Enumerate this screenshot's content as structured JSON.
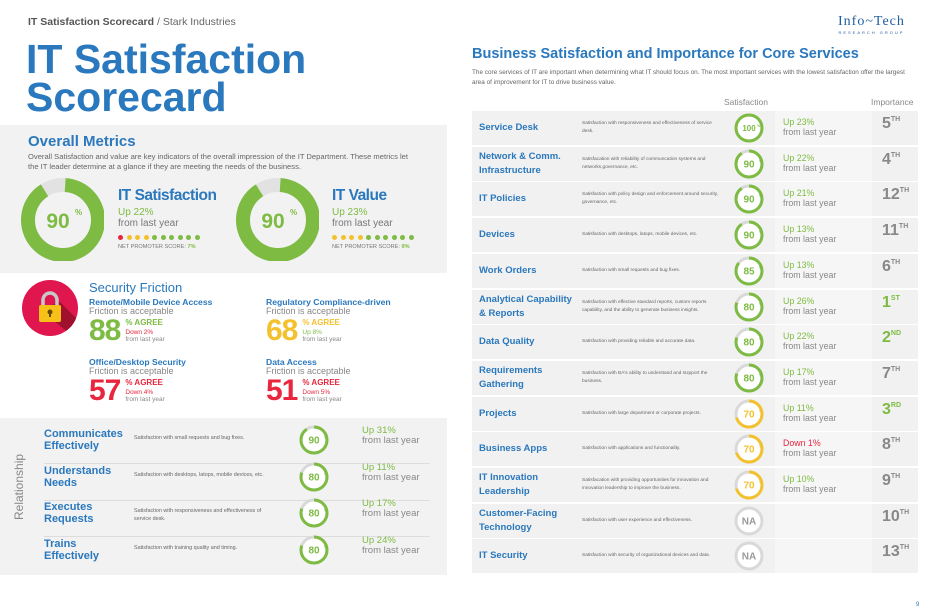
{
  "breadcrumb": {
    "doc": "IT Satisfaction Scorecard",
    "sep": " / ",
    "org": "Stark Industries"
  },
  "title": "IT Satisfaction Scorecard",
  "logo": {
    "line1": "Info~Tech",
    "line2": "RESEARCH GROUP"
  },
  "colors": {
    "blue": "#2a78bd",
    "green": "#7dbb42",
    "yellow": "#f4c12e",
    "red": "#e8263d",
    "gray": "#d9d9d9"
  },
  "overall": {
    "heading": "Overall Metrics",
    "description": "Overall Satisfaction and value are key indicators of the overall impression of the IT Department. These metrics let the IT leader determine at a glance if they are meeting the needs of the business.",
    "metrics": [
      {
        "title": "IT Satisfaction",
        "value": 90,
        "value_label": "90",
        "change": "Up 22%",
        "from": "from last year",
        "nps_label": "NET PROMOTER SCORE: ",
        "nps": "7%",
        "dots": [
          "red",
          "yellow",
          "yellow",
          "yellow",
          "green",
          "green",
          "green",
          "green",
          "green",
          "green"
        ]
      },
      {
        "title": "IT Value",
        "value": 90,
        "value_label": "90",
        "change": "Up 23%",
        "from": "from last year",
        "nps_label": "NET PROMOTER SCORE: ",
        "nps": "9%",
        "dots": [
          "yellow",
          "yellow",
          "yellow",
          "yellow",
          "green",
          "green",
          "green",
          "green",
          "green",
          "green"
        ]
      }
    ]
  },
  "security": {
    "heading": "Security Friction",
    "icon": "padlock-icon",
    "items": [
      {
        "name": "Remote/Mobile Device Access",
        "status": "Friction is acceptable",
        "value": "88",
        "agree": "% AGREE",
        "change": "Down 2%",
        "from": "from last year",
        "color": "green",
        "change_color": "red"
      },
      {
        "name": "Regulatory Compliance-driven",
        "status": "Friction is acceptable",
        "value": "68",
        "agree": "% AGREE",
        "change": "Up 8%",
        "from": "from last year",
        "color": "yellow",
        "change_color": "green"
      },
      {
        "name": "Office/Desktop Security",
        "status": "Friction is acceptable",
        "value": "57",
        "agree": "% AGREE",
        "change": "Down 4%",
        "from": "from last year",
        "color": "red",
        "change_color": "red"
      },
      {
        "name": "Data Access",
        "status": "Friction is acceptable",
        "value": "51",
        "agree": "% AGREE",
        "change": "Down 5%",
        "from": "from last year",
        "color": "red",
        "change_color": "red"
      }
    ]
  },
  "relationship": {
    "label": "Relationship",
    "rows": [
      {
        "name": "Communicates Effectively",
        "desc": "Satisfaction with small requests and bug fixes.",
        "value": 90,
        "change": "Up 31%",
        "from": "from last year"
      },
      {
        "name": "Understands Needs",
        "desc": "Satisfaction with desktops, latops, mobile devices, etc.",
        "value": 80,
        "change": "Up 11%",
        "from": "from last year"
      },
      {
        "name": "Executes Requests",
        "desc": "Satisfaction with responsiveness and effectiveness of service desk.",
        "value": 80,
        "change": "Up 17%",
        "from": "from last year"
      },
      {
        "name": "Trains Effectively",
        "desc": "Satisfaction with training quality and timing.",
        "value": 80,
        "change": "Up 24%",
        "from": "from last year"
      }
    ]
  },
  "services": {
    "heading": "Business Satisfaction and Importance for Core Services",
    "description": "The core services of IT are important when determining what IT should focus on. The most important services with the lowest satisfaction offer the largest area of improvement for IT to drive business value.",
    "col_satisfaction": "Satisfaction",
    "col_importance": "Importance",
    "rows": [
      {
        "name": "Service Desk",
        "desc": "Satisfaction with responsiveness and effectiveness of service desk.",
        "value": 100,
        "change": "Up 23%",
        "from": "from last year",
        "rank": "5",
        "suffix": "TH"
      },
      {
        "name": "Network & Comm. Infrastructure",
        "desc": "Satisfacation with reliability of communcation systems and networks,governance, etc.",
        "value": 90,
        "change": "Up 22%",
        "from": "from last year",
        "rank": "4",
        "suffix": "TH"
      },
      {
        "name": "IT Policies",
        "desc": "Satisfaction with policy design and enforcement around security, governance, etc.",
        "value": 90,
        "change": "Up 21%",
        "from": "from last year",
        "rank": "12",
        "suffix": "TH"
      },
      {
        "name": "Devices",
        "desc": "Satisfaction with desktops, latops, mobile devices, etc.",
        "value": 90,
        "change": "Up 13%",
        "from": "from last year",
        "rank": "11",
        "suffix": "TH"
      },
      {
        "name": "Work Orders",
        "desc": "Satisfaction with small requests and bug fixes.",
        "value": 85,
        "change": "Up 13%",
        "from": "from last year",
        "rank": "6",
        "suffix": "TH"
      },
      {
        "name": "Analytical Capability & Reports",
        "desc": "Satisfaction with effective standard reports, custom reports capability, and the ability to generate business insights.",
        "value": 80,
        "change": "Up 26%",
        "from": "from last year",
        "rank": "1",
        "suffix": "ST",
        "top": true
      },
      {
        "name": "Data Quality",
        "desc": "Satisfaction with providing reliable and accurate data.",
        "value": 80,
        "change": "Up 22%",
        "from": "from last year",
        "rank": "2",
        "suffix": "ND",
        "top": true
      },
      {
        "name": "Requirements Gathering",
        "desc": "Satisfaction with BA's ability to understand and sUpport the business.",
        "value": 80,
        "change": "Up 17%",
        "from": "from last year",
        "rank": "7",
        "suffix": "TH"
      },
      {
        "name": "Projects",
        "desc": "Satisfaction with large department or corporate projects.",
        "value": 70,
        "change": "Up 11%",
        "from": "from last year",
        "rank": "3",
        "suffix": "RD",
        "top": true
      },
      {
        "name": "Business Apps",
        "desc": "Satisfaction with applications and functionality.",
        "value": 70,
        "change": "Down 1%",
        "from": "from last year",
        "rank": "8",
        "suffix": "TH",
        "down": true
      },
      {
        "name": "IT Innovation Leadership",
        "desc": "Satisfacation with providing opportunities for innovation and innovation leadership to improve the business.",
        "value": 70,
        "change": "Up 10%",
        "from": "from last year",
        "rank": "9",
        "suffix": "TH"
      },
      {
        "name": "Customer-Facing Technology",
        "desc": "Satisfaction with user experience and effectiveness.",
        "value": null,
        "na": "NA",
        "rank": "10",
        "suffix": "TH"
      },
      {
        "name": "IT Security",
        "desc": "Satisfaction with security of organizational devices and data.",
        "value": null,
        "na": "NA",
        "rank": "13",
        "suffix": "TH"
      }
    ]
  },
  "page_number": "9"
}
